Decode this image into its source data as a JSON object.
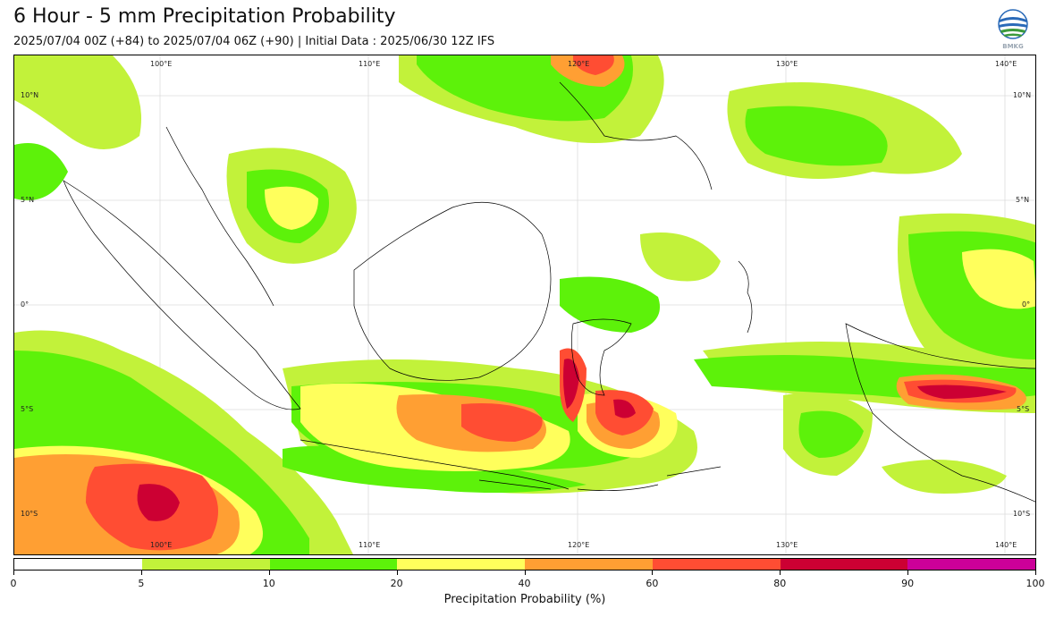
{
  "header": {
    "title": "6 Hour - 5 mm Precipitation Probability",
    "subtitle": "2025/07/04 00Z (+84) to 2025/07/04 06Z (+90) | Initial Data : 2025/06/30 12Z IFS",
    "logo_text": "BMKG"
  },
  "map": {
    "top_lon_labels": [
      "100°E",
      "110°E",
      "120°E",
      "130°E",
      "140°E"
    ],
    "bottom_lon_labels": [
      "100°E",
      "110°E",
      "120°E",
      "130°E",
      "140°E"
    ],
    "left_lat_labels": [
      "10°N",
      "5°N",
      "0°",
      "5°S",
      "10°S"
    ],
    "right_lat_labels": [
      "10°N",
      "5°N",
      "0°",
      "5°S",
      "10°S"
    ]
  },
  "colorbar": {
    "label": "Precipitation Probability (%)",
    "ticks": [
      "0",
      "5",
      "10",
      "20",
      "40",
      "60",
      "80",
      "90",
      "100"
    ],
    "colors": [
      "#ffffff",
      "#c2f23a",
      "#5df20a",
      "#ffff5c",
      "#ff9f33",
      "#ff4d33",
      "#cc0033",
      "#cc0099"
    ]
  }
}
